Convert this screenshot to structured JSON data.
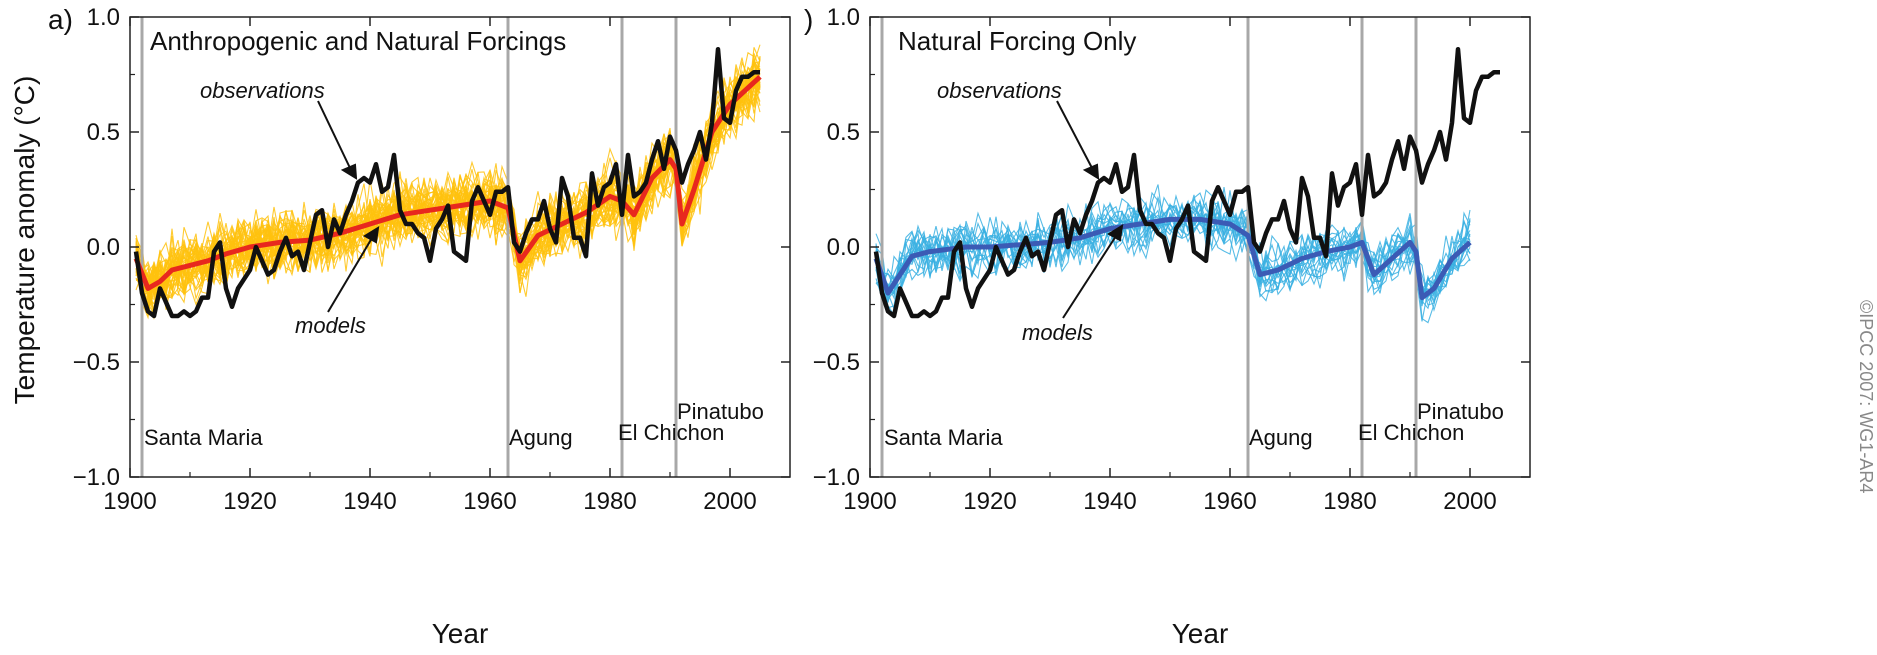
{
  "panel_a_letter": "a)",
  "panel_b_letter": ")",
  "ylabel": "Temperature anomaly (°C)",
  "copyright": "©IPCC 2007: WG1-AR4",
  "colors": {
    "observations": "#111111",
    "models_a_mean": "#e8281e",
    "models_a_members": "#ffc20e",
    "models_b_mean": "#3b5bb5",
    "models_b_members": "#3ab0e2",
    "volcano_line": "#a8a8a8"
  },
  "volcanoes": [
    {
      "name": "Santa Maria",
      "year": 1902
    },
    {
      "name": "Agung",
      "year": 1963
    },
    {
      "name": "El Chichon",
      "year": 1982
    },
    {
      "name": "Pinatubo",
      "year": 1991
    }
  ],
  "chart_data": [
    {
      "type": "line",
      "title": "Anthropogenic and Natural Forcings",
      "xlabel": "Year",
      "ylabel": "Temperature anomaly (°C)",
      "xlim": [
        1900,
        2010
      ],
      "ylim": [
        -1.0,
        1.0
      ],
      "xticks": [
        "1900",
        "1920",
        "1940",
        "1960",
        "1980",
        "2000"
      ],
      "yticks": [
        "−1.0",
        "−0.5",
        "0.0",
        "0.5",
        "1.0"
      ],
      "annotations": [
        "observations",
        "models"
      ],
      "series": [
        {
          "name": "observations",
          "x": [
            1901,
            1902,
            1903,
            1904,
            1905,
            1906,
            1907,
            1908,
            1909,
            1910,
            1911,
            1912,
            1913,
            1914,
            1915,
            1916,
            1917,
            1918,
            1919,
            1920,
            1921,
            1922,
            1923,
            1924,
            1925,
            1926,
            1927,
            1928,
            1929,
            1930,
            1931,
            1932,
            1933,
            1934,
            1935,
            1936,
            1937,
            1938,
            1939,
            1940,
            1941,
            1942,
            1943,
            1944,
            1945,
            1946,
            1947,
            1948,
            1949,
            1950,
            1951,
            1952,
            1953,
            1954,
            1955,
            1956,
            1957,
            1958,
            1959,
            1960,
            1961,
            1962,
            1963,
            1964,
            1965,
            1966,
            1967,
            1968,
            1969,
            1970,
            1971,
            1972,
            1973,
            1974,
            1975,
            1976,
            1977,
            1978,
            1979,
            1980,
            1981,
            1982,
            1983,
            1984,
            1985,
            1986,
            1987,
            1988,
            1989,
            1990,
            1991,
            1992,
            1993,
            1994,
            1995,
            1996,
            1997,
            1998,
            1999,
            2000,
            2001,
            2002,
            2003,
            2004,
            2005
          ],
          "y": [
            -0.02,
            -0.2,
            -0.28,
            -0.3,
            -0.18,
            -0.24,
            -0.3,
            -0.3,
            -0.28,
            -0.3,
            -0.28,
            -0.22,
            -0.22,
            -0.02,
            0.02,
            -0.18,
            -0.26,
            -0.18,
            -0.14,
            -0.1,
            0.0,
            -0.06,
            -0.12,
            -0.1,
            -0.02,
            0.04,
            -0.04,
            -0.02,
            -0.1,
            0.02,
            0.14,
            0.16,
            0.0,
            0.12,
            0.06,
            0.14,
            0.2,
            0.28,
            0.3,
            0.28,
            0.36,
            0.24,
            0.26,
            0.4,
            0.16,
            0.1,
            0.1,
            0.06,
            0.04,
            -0.06,
            0.08,
            0.12,
            0.18,
            -0.02,
            -0.04,
            -0.06,
            0.2,
            0.26,
            0.2,
            0.14,
            0.24,
            0.24,
            0.26,
            0.02,
            -0.02,
            0.06,
            0.12,
            0.12,
            0.2,
            0.08,
            0.02,
            0.3,
            0.22,
            0.04,
            0.04,
            -0.04,
            0.32,
            0.18,
            0.26,
            0.28,
            0.36,
            0.14,
            0.4,
            0.22,
            0.24,
            0.28,
            0.38,
            0.46,
            0.34,
            0.48,
            0.42,
            0.28,
            0.36,
            0.42,
            0.5,
            0.38,
            0.54,
            0.86,
            0.56,
            0.54,
            0.68,
            0.74,
            0.74,
            0.76,
            0.76
          ]
        },
        {
          "name": "models",
          "x": [
            1901,
            1903,
            1905,
            1907,
            1910,
            1913,
            1916,
            1920,
            1925,
            1930,
            1935,
            1940,
            1945,
            1950,
            1955,
            1960,
            1963,
            1965,
            1968,
            1972,
            1976,
            1980,
            1982,
            1984,
            1987,
            1990,
            1991,
            1992,
            1994,
            1997,
            2000,
            2005
          ],
          "y": [
            -0.05,
            -0.18,
            -0.15,
            -0.1,
            -0.08,
            -0.06,
            -0.03,
            0.0,
            0.02,
            0.03,
            0.06,
            0.1,
            0.14,
            0.16,
            0.18,
            0.2,
            0.17,
            -0.06,
            0.05,
            0.1,
            0.15,
            0.22,
            0.2,
            0.14,
            0.3,
            0.38,
            0.34,
            0.1,
            0.25,
            0.5,
            0.62,
            0.74
          ]
        }
      ]
    },
    {
      "type": "line",
      "title": "Natural Forcing Only",
      "xlabel": "Year",
      "ylabel": "",
      "xlim": [
        1900,
        2010
      ],
      "ylim": [
        -1.0,
        1.0
      ],
      "xticks": [
        "1900",
        "1920",
        "1940",
        "1960",
        "1980",
        "2000"
      ],
      "yticks": [
        "−1.0",
        "−0.5",
        "0.0",
        "0.5",
        "1.0"
      ],
      "annotations": [
        "observations",
        "models"
      ],
      "series": [
        {
          "name": "observations",
          "x": [
            1901,
            1902,
            1903,
            1904,
            1905,
            1906,
            1907,
            1908,
            1909,
            1910,
            1911,
            1912,
            1913,
            1914,
            1915,
            1916,
            1917,
            1918,
            1919,
            1920,
            1921,
            1922,
            1923,
            1924,
            1925,
            1926,
            1927,
            1928,
            1929,
            1930,
            1931,
            1932,
            1933,
            1934,
            1935,
            1936,
            1937,
            1938,
            1939,
            1940,
            1941,
            1942,
            1943,
            1944,
            1945,
            1946,
            1947,
            1948,
            1949,
            1950,
            1951,
            1952,
            1953,
            1954,
            1955,
            1956,
            1957,
            1958,
            1959,
            1960,
            1961,
            1962,
            1963,
            1964,
            1965,
            1966,
            1967,
            1968,
            1969,
            1970,
            1971,
            1972,
            1973,
            1974,
            1975,
            1976,
            1977,
            1978,
            1979,
            1980,
            1981,
            1982,
            1983,
            1984,
            1985,
            1986,
            1987,
            1988,
            1989,
            1990,
            1991,
            1992,
            1993,
            1994,
            1995,
            1996,
            1997,
            1998,
            1999,
            2000,
            2001,
            2002,
            2003,
            2004,
            2005
          ],
          "y": [
            -0.02,
            -0.2,
            -0.28,
            -0.3,
            -0.18,
            -0.24,
            -0.3,
            -0.3,
            -0.28,
            -0.3,
            -0.28,
            -0.22,
            -0.22,
            -0.02,
            0.02,
            -0.18,
            -0.26,
            -0.18,
            -0.14,
            -0.1,
            0.0,
            -0.06,
            -0.12,
            -0.1,
            -0.02,
            0.04,
            -0.04,
            -0.02,
            -0.1,
            0.02,
            0.14,
            0.16,
            0.0,
            0.12,
            0.06,
            0.14,
            0.2,
            0.28,
            0.3,
            0.28,
            0.36,
            0.24,
            0.26,
            0.4,
            0.16,
            0.1,
            0.1,
            0.06,
            0.04,
            -0.06,
            0.08,
            0.12,
            0.18,
            -0.02,
            -0.04,
            -0.06,
            0.2,
            0.26,
            0.2,
            0.14,
            0.24,
            0.24,
            0.26,
            0.02,
            -0.02,
            0.06,
            0.12,
            0.12,
            0.2,
            0.08,
            0.02,
            0.3,
            0.22,
            0.04,
            0.04,
            -0.04,
            0.32,
            0.18,
            0.26,
            0.28,
            0.36,
            0.14,
            0.4,
            0.22,
            0.24,
            0.28,
            0.38,
            0.46,
            0.34,
            0.48,
            0.42,
            0.28,
            0.36,
            0.42,
            0.5,
            0.38,
            0.54,
            0.86,
            0.56,
            0.54,
            0.68,
            0.74,
            0.74,
            0.76,
            0.76
          ]
        },
        {
          "name": "models",
          "x": [
            1901,
            1903,
            1905,
            1907,
            1910,
            1913,
            1916,
            1920,
            1925,
            1930,
            1935,
            1940,
            1945,
            1950,
            1955,
            1960,
            1963,
            1965,
            1968,
            1972,
            1976,
            1980,
            1982,
            1984,
            1987,
            1990,
            1991,
            1992,
            1994,
            1997,
            2000
          ],
          "y": [
            -0.05,
            -0.2,
            -0.12,
            -0.04,
            -0.02,
            -0.01,
            0.0,
            0.0,
            0.01,
            0.02,
            0.04,
            0.08,
            0.1,
            0.12,
            0.12,
            0.1,
            0.05,
            -0.12,
            -0.1,
            -0.05,
            -0.02,
            0.0,
            0.02,
            -0.12,
            -0.05,
            0.02,
            -0.02,
            -0.22,
            -0.18,
            -0.05,
            0.02
          ]
        }
      ]
    }
  ]
}
